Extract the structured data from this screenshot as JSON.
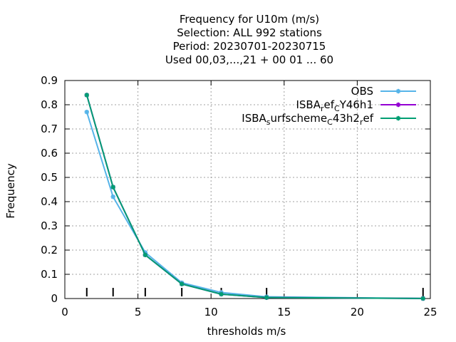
{
  "chart_data": {
    "type": "line",
    "title_lines": [
      "Frequency  for U10m (m/s)",
      "Selection: ALL    992 stations",
      "Period: 20230701-20230715",
      "Used  00,03,...,21  + 00 01 ... 60"
    ],
    "xlabel": "thresholds m/s",
    "ylabel": "Frequency",
    "xlim": [
      0,
      25
    ],
    "ylim": [
      0,
      0.9
    ],
    "xticks": [
      0,
      5,
      10,
      15,
      20,
      25
    ],
    "yticks": [
      0,
      0.1,
      0.2,
      0.3,
      0.4,
      0.5,
      0.6,
      0.7,
      0.8,
      0.9
    ],
    "grid": true,
    "legend_position": "top-right",
    "threshold_marks": [
      1.5,
      3.3,
      5.5,
      8,
      10.7,
      13.8,
      24.5
    ],
    "x": [
      1.5,
      3.3,
      5.5,
      8,
      10.7,
      13.8,
      24.5
    ],
    "series": [
      {
        "name": "OBS",
        "color": "#56b4e9",
        "values": [
          0.77,
          0.42,
          0.19,
          0.065,
          0.025,
          0.007,
          0.0003
        ]
      },
      {
        "name": "ISBA_ref_CY46h1",
        "legend_parts": [
          "ISBA",
          "r",
          "ef",
          "C",
          "Y46h1"
        ],
        "color": "#9400d3",
        "values": [
          0.84,
          0.46,
          0.18,
          0.06,
          0.018,
          0.004,
          0.0002
        ]
      },
      {
        "name": "ISBA_surfscheme_C43h2_ref",
        "legend_parts": [
          "ISBA",
          "s",
          "urfscheme",
          "C",
          "43h2",
          "r",
          "ef"
        ],
        "color": "#009e73",
        "values": [
          0.84,
          0.46,
          0.18,
          0.06,
          0.018,
          0.004,
          0.0002
        ]
      }
    ]
  }
}
